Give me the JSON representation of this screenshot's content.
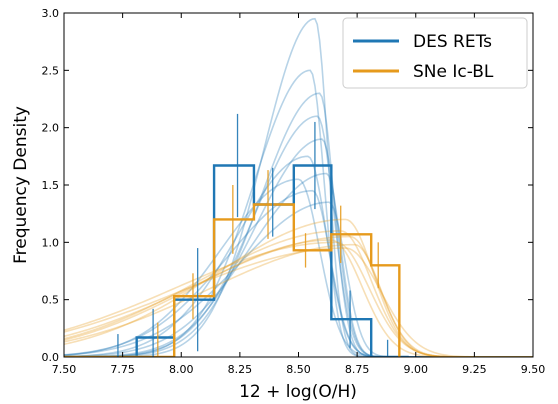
{
  "chart_data": {
    "type": "line",
    "title": "",
    "xlabel": "12 + log(O/H)",
    "ylabel": "Frequency Density",
    "xlim": [
      7.5,
      9.5
    ],
    "ylim": [
      0.0,
      3.0
    ],
    "x_ticks": [
      "7.50",
      "7.75",
      "8.00",
      "8.25",
      "8.50",
      "8.75",
      "9.00",
      "9.25",
      "9.50"
    ],
    "y_ticks": [
      "0.0",
      "0.5",
      "1.0",
      "1.5",
      "2.0",
      "2.5",
      "3.0"
    ],
    "grid": false,
    "legend_position": "top-right",
    "series": [
      {
        "name": "DES RETs",
        "color": "#1f77b4",
        "histogram": {
          "edges": [
            7.5,
            7.81,
            7.97,
            8.14,
            8.31,
            8.48,
            8.64,
            8.81,
            8.97
          ],
          "values": [
            0.0,
            0.17,
            0.5,
            1.67,
            1.33,
            1.67,
            0.33,
            0.0
          ]
        },
        "error_bars": [
          {
            "x": 7.73,
            "y": 0.05,
            "err": 0.15
          },
          {
            "x": 7.88,
            "y": 0.17,
            "err": 0.25
          },
          {
            "x": 8.07,
            "y": 0.5,
            "err": 0.45
          },
          {
            "x": 8.24,
            "y": 1.67,
            "err": 0.45
          },
          {
            "x": 8.39,
            "y": 1.35,
            "err": 0.3
          },
          {
            "x": 8.57,
            "y": 1.67,
            "err": 0.38
          },
          {
            "x": 8.72,
            "y": 0.33,
            "err": 0.25
          },
          {
            "x": 8.88,
            "y": 0.05,
            "err": 0.1
          }
        ],
        "posterior_curves": [
          {
            "peak_x": 8.57,
            "peak_y": 2.95,
            "lower_width": 0.22,
            "upper_width": 0.055
          },
          {
            "peak_x": 8.55,
            "peak_y": 2.5,
            "lower_width": 0.24,
            "upper_width": 0.06
          },
          {
            "peak_x": 8.58,
            "peak_y": 2.1,
            "lower_width": 0.26,
            "upper_width": 0.07
          },
          {
            "peak_x": 8.6,
            "peak_y": 1.9,
            "lower_width": 0.28,
            "upper_width": 0.065
          },
          {
            "peak_x": 8.54,
            "peak_y": 1.75,
            "lower_width": 0.3,
            "upper_width": 0.08
          },
          {
            "peak_x": 8.62,
            "peak_y": 1.6,
            "lower_width": 0.32,
            "upper_width": 0.06
          },
          {
            "peak_x": 8.5,
            "peak_y": 1.55,
            "lower_width": 0.33,
            "upper_width": 0.09
          },
          {
            "peak_x": 8.59,
            "peak_y": 2.3,
            "lower_width": 0.25,
            "upper_width": 0.06
          },
          {
            "peak_x": 8.56,
            "peak_y": 1.45,
            "lower_width": 0.36,
            "upper_width": 0.075
          },
          {
            "peak_x": 8.63,
            "peak_y": 1.35,
            "lower_width": 0.38,
            "upper_width": 0.07
          }
        ]
      },
      {
        "name": "SNe Ic-BL",
        "color": "#e69a1c",
        "histogram": {
          "edges": [
            7.5,
            7.81,
            7.97,
            8.14,
            8.31,
            8.48,
            8.64,
            8.81,
            8.93
          ],
          "values": [
            0.0,
            0.0,
            0.53,
            1.2,
            1.33,
            0.93,
            1.07,
            0.8
          ]
        },
        "error_bars": [
          {
            "x": 7.9,
            "y": 0.05,
            "err": 0.25
          },
          {
            "x": 8.05,
            "y": 0.53,
            "err": 0.2
          },
          {
            "x": 8.22,
            "y": 1.2,
            "err": 0.3
          },
          {
            "x": 8.37,
            "y": 1.33,
            "err": 0.3
          },
          {
            "x": 8.53,
            "y": 0.93,
            "err": 0.15
          },
          {
            "x": 8.68,
            "y": 1.07,
            "err": 0.25
          },
          {
            "x": 8.84,
            "y": 0.8,
            "err": 0.2
          }
        ],
        "posterior_curves": [
          {
            "peak_x": 8.7,
            "peak_y": 1.2,
            "lower_width": 0.55,
            "upper_width": 0.12
          },
          {
            "peak_x": 8.68,
            "peak_y": 1.1,
            "lower_width": 0.6,
            "upper_width": 0.13
          },
          {
            "peak_x": 8.72,
            "peak_y": 1.05,
            "lower_width": 0.65,
            "upper_width": 0.12
          },
          {
            "peak_x": 8.66,
            "peak_y": 1.0,
            "lower_width": 0.68,
            "upper_width": 0.14
          },
          {
            "peak_x": 8.74,
            "peak_y": 0.98,
            "lower_width": 0.62,
            "upper_width": 0.11
          },
          {
            "peak_x": 8.7,
            "peak_y": 0.95,
            "lower_width": 0.7,
            "upper_width": 0.15
          },
          {
            "peak_x": 8.64,
            "peak_y": 1.02,
            "lower_width": 0.58,
            "upper_width": 0.13
          }
        ]
      }
    ]
  }
}
